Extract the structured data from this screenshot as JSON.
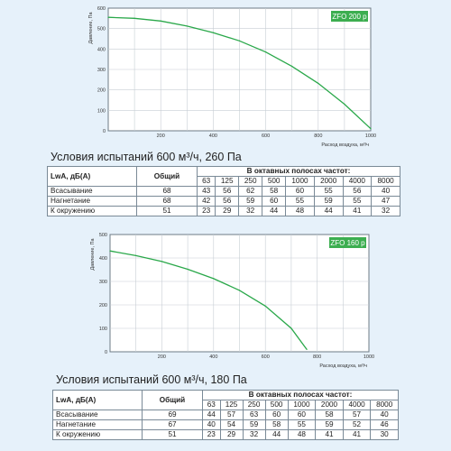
{
  "chart_data": [
    {
      "type": "line",
      "title": "ZFO 200 р",
      "xlabel": "Расход воздуха, м³/ч",
      "ylabel": "Давление, Па",
      "xlim": [
        0,
        1000
      ],
      "ylim": [
        0,
        600
      ],
      "xticks": [
        200,
        400,
        600,
        800,
        1000
      ],
      "yticks": [
        0,
        100,
        200,
        300,
        400,
        500,
        600
      ],
      "grid": true,
      "series": [
        {
          "color": "#2aa84a",
          "x": [
            0,
            100,
            200,
            300,
            400,
            500,
            600,
            700,
            800,
            900,
            1000
          ],
          "values": [
            555,
            550,
            537,
            512,
            480,
            440,
            385,
            315,
            232,
            130,
            10
          ]
        }
      ]
    },
    {
      "type": "line",
      "title": "ZFO 160 р",
      "xlabel": "Расход воздуха, м³/ч",
      "ylabel": "Давление, Па",
      "xlim": [
        0,
        1000
      ],
      "ylim": [
        0,
        500
      ],
      "xticks": [
        200,
        400,
        600,
        800,
        1000
      ],
      "yticks": [
        0,
        100,
        200,
        300,
        400,
        500
      ],
      "grid": true,
      "series": [
        {
          "color": "#2aa84a",
          "x": [
            0,
            100,
            200,
            300,
            400,
            500,
            600,
            700,
            760
          ],
          "values": [
            430,
            410,
            385,
            352,
            312,
            262,
            195,
            100,
            10
          ]
        }
      ]
    }
  ],
  "sections": [
    {
      "conditions": "Условия испытаний 600 м³/ч, 260 Па",
      "table": {
        "lwa_label": "LwA, дБ(A)",
        "total_label": "Общий",
        "bands_title": "В октавных полосах частот:",
        "bands": [
          "63",
          "125",
          "250",
          "500",
          "1000",
          "2000",
          "4000",
          "8000"
        ],
        "rows": [
          {
            "label": "Всасывание",
            "total": "68",
            "values": [
              "43",
              "56",
              "62",
              "58",
              "60",
              "55",
              "56",
              "40"
            ]
          },
          {
            "label": "Нагнетание",
            "total": "68",
            "values": [
              "42",
              "56",
              "59",
              "60",
              "55",
              "59",
              "55",
              "47"
            ]
          },
          {
            "label": "К окружению",
            "total": "51",
            "values": [
              "23",
              "29",
              "32",
              "44",
              "48",
              "44",
              "41",
              "32"
            ]
          }
        ]
      }
    },
    {
      "conditions": "Условия испытаний 600 м³/ч, 180 Па",
      "table": {
        "lwa_label": "LwA, дБ(A)",
        "total_label": "Общий",
        "bands_title": "В октавных полосах частот:",
        "bands": [
          "63",
          "125",
          "250",
          "500",
          "1000",
          "2000",
          "4000",
          "8000"
        ],
        "rows": [
          {
            "label": "Всасывание",
            "total": "69",
            "values": [
              "44",
              "57",
              "63",
              "60",
              "60",
              "58",
              "57",
              "40"
            ]
          },
          {
            "label": "Нагнетание",
            "total": "67",
            "values": [
              "40",
              "54",
              "59",
              "58",
              "55",
              "59",
              "52",
              "46"
            ]
          },
          {
            "label": "К окружению",
            "total": "51",
            "values": [
              "23",
              "29",
              "32",
              "44",
              "48",
              "41",
              "41",
              "30"
            ]
          }
        ]
      }
    }
  ]
}
